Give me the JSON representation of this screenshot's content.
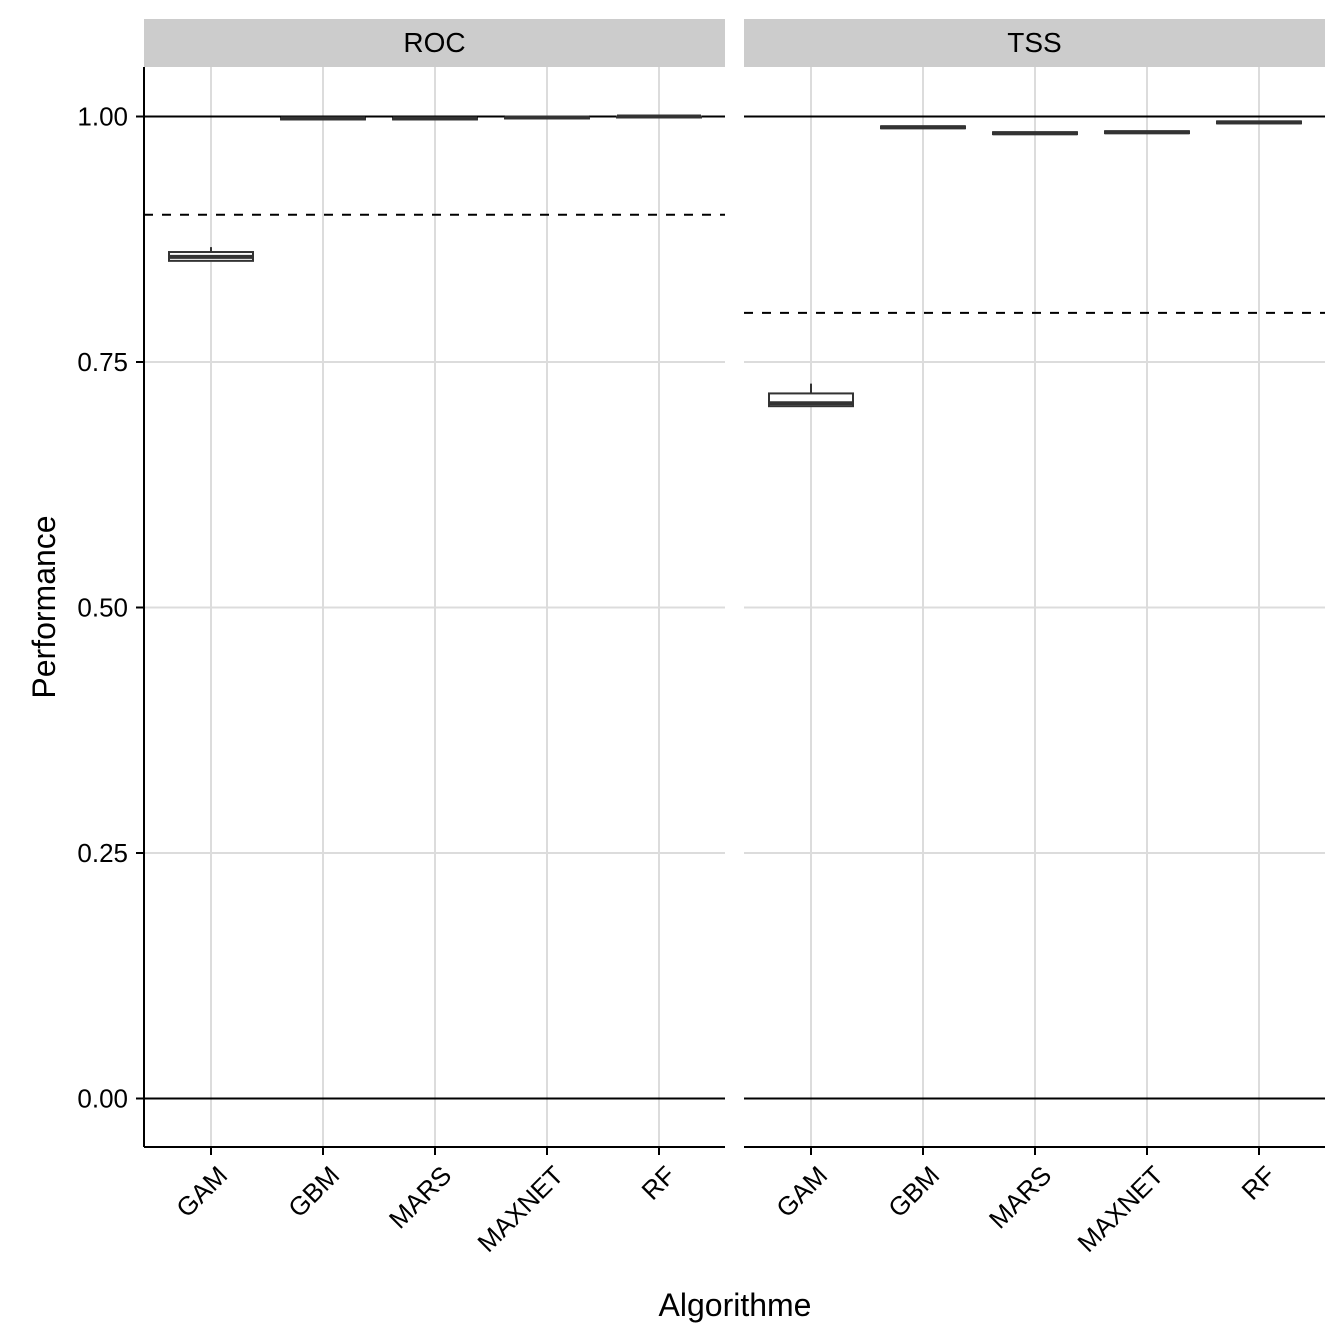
{
  "chart_data": {
    "type": "boxplot",
    "xlabel": "Algorithme",
    "ylabel": "Performance",
    "ylim": [
      -0.05,
      1.05
    ],
    "y_ticks": [
      "0.00",
      "0.25",
      "0.50",
      "0.75",
      "1.00"
    ],
    "y_tick_values": [
      0,
      0.25,
      0.5,
      0.75,
      1.0
    ],
    "categories": [
      "GAM",
      "GBM",
      "MARS",
      "MAXNET",
      "RF"
    ],
    "grid": true,
    "reference_lines_solid": [
      0,
      1
    ],
    "panels": [
      {
        "name": "ROC",
        "threshold_dashed": 0.9,
        "boxes": [
          {
            "category": "GAM",
            "min": 0.853,
            "q1": 0.853,
            "median": 0.857,
            "q3": 0.862,
            "max": 0.867
          },
          {
            "category": "GBM",
            "min": 0.997,
            "q1": 0.997,
            "median": 0.998,
            "q3": 0.998,
            "max": 0.998
          },
          {
            "category": "MARS",
            "min": 0.997,
            "q1": 0.997,
            "median": 0.998,
            "q3": 0.998,
            "max": 0.998
          },
          {
            "category": "MAXNET",
            "min": 0.998,
            "q1": 0.998,
            "median": 0.999,
            "q3": 0.999,
            "max": 0.999
          },
          {
            "category": "RF",
            "min": 0.999,
            "q1": 0.999,
            "median": 1.0,
            "q3": 1.0,
            "max": 1.0
          }
        ]
      },
      {
        "name": "TSS",
        "threshold_dashed": 0.8,
        "boxes": [
          {
            "category": "GAM",
            "min": 0.705,
            "q1": 0.705,
            "median": 0.708,
            "q3": 0.718,
            "max": 0.728
          },
          {
            "category": "GBM",
            "min": 0.988,
            "q1": 0.988,
            "median": 0.989,
            "q3": 0.99,
            "max": 0.99
          },
          {
            "category": "MARS",
            "min": 0.982,
            "q1": 0.982,
            "median": 0.983,
            "q3": 0.984,
            "max": 0.984
          },
          {
            "category": "MAXNET",
            "min": 0.983,
            "q1": 0.983,
            "median": 0.984,
            "q3": 0.985,
            "max": 0.985
          },
          {
            "category": "RF",
            "min": 0.993,
            "q1": 0.993,
            "median": 0.994,
            "q3": 0.995,
            "max": 0.995
          }
        ]
      }
    ]
  }
}
